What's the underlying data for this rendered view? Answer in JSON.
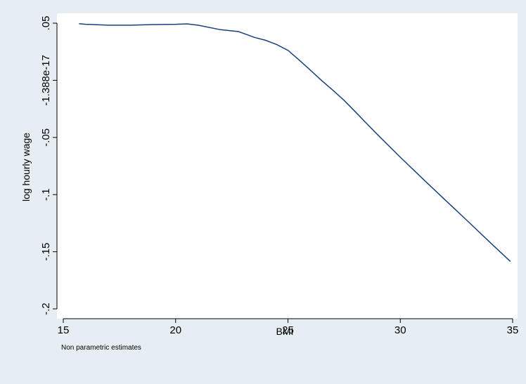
{
  "colors": {
    "outer_background": "#e6eef3",
    "plot_background": "#ffffff",
    "line": "#1a3f7a",
    "axis": "#000000"
  },
  "chart_data": {
    "type": "line",
    "title": "",
    "xlabel": "BMI",
    "ylabel": "log hourly wage",
    "note": "Non parametric estimates",
    "grid": false,
    "legend": "none",
    "xlim": [
      15,
      35
    ],
    "ylim": [
      -0.2,
      0.05
    ],
    "x_ticks": [
      15,
      20,
      25,
      30,
      35
    ],
    "x_tick_labels": [
      "15",
      "20",
      "25",
      "30",
      "35"
    ],
    "y_ticks": [
      -0.2,
      -0.15,
      -0.1,
      -0.05,
      0,
      0.05
    ],
    "y_tick_labels": [
      "-.2",
      "-.15",
      "-.1",
      "-.05",
      "-1.388e-17",
      ".05"
    ],
    "series": [
      {
        "x": [
          15.7,
          16,
          17,
          18,
          19,
          20,
          20.5,
          21,
          22,
          22.8,
          23,
          23.5,
          24,
          24.5,
          25,
          25.5,
          26,
          26.5,
          27,
          27.5,
          28,
          28.5,
          29,
          30,
          31,
          32,
          33,
          34,
          34.9
        ],
        "values": [
          0.0496,
          0.049,
          0.0482,
          0.0482,
          0.0488,
          0.049,
          0.0494,
          0.0482,
          0.0443,
          0.0426,
          0.0412,
          0.0376,
          0.035,
          0.0313,
          0.0262,
          0.0177,
          0.0088,
          -0.0002,
          -0.0087,
          -0.0176,
          -0.0276,
          -0.0378,
          -0.0478,
          -0.0673,
          -0.0862,
          -0.1047,
          -0.1232,
          -0.1419,
          -0.1585
        ]
      }
    ]
  }
}
